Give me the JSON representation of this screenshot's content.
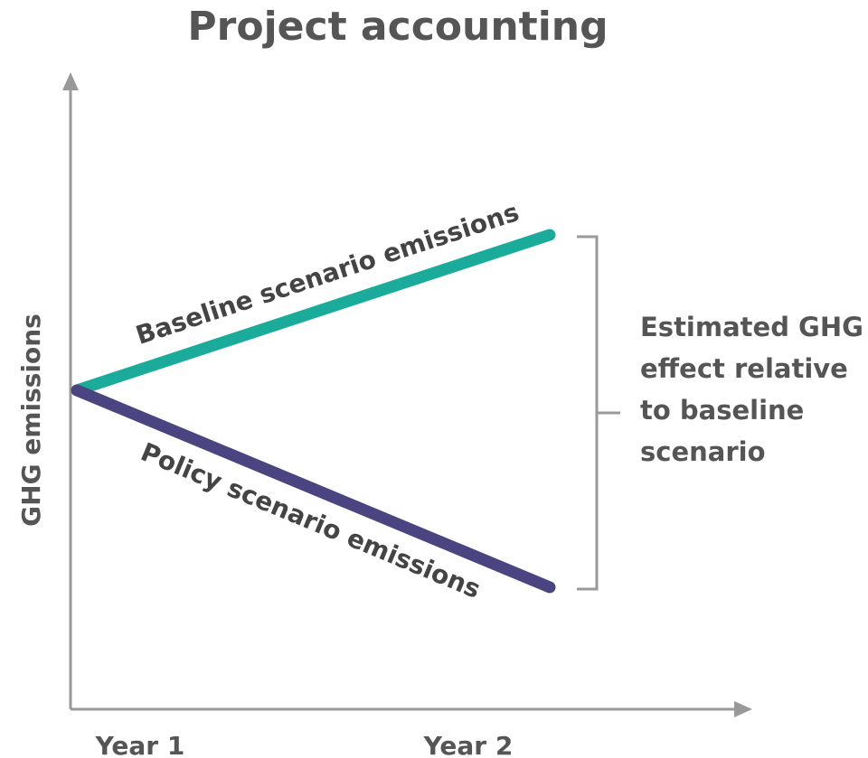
{
  "title": "Project accounting",
  "y_axis_label": "GHG emissions",
  "x_labels": [
    "Year 1",
    "Year 2"
  ],
  "lines": [
    {
      "label": "Baseline scenario emissions"
    },
    {
      "label": "Policy scenario emissions"
    }
  ],
  "annotation": [
    "Estimated GHG",
    "effect relative",
    "to baseline",
    "scenario"
  ]
}
